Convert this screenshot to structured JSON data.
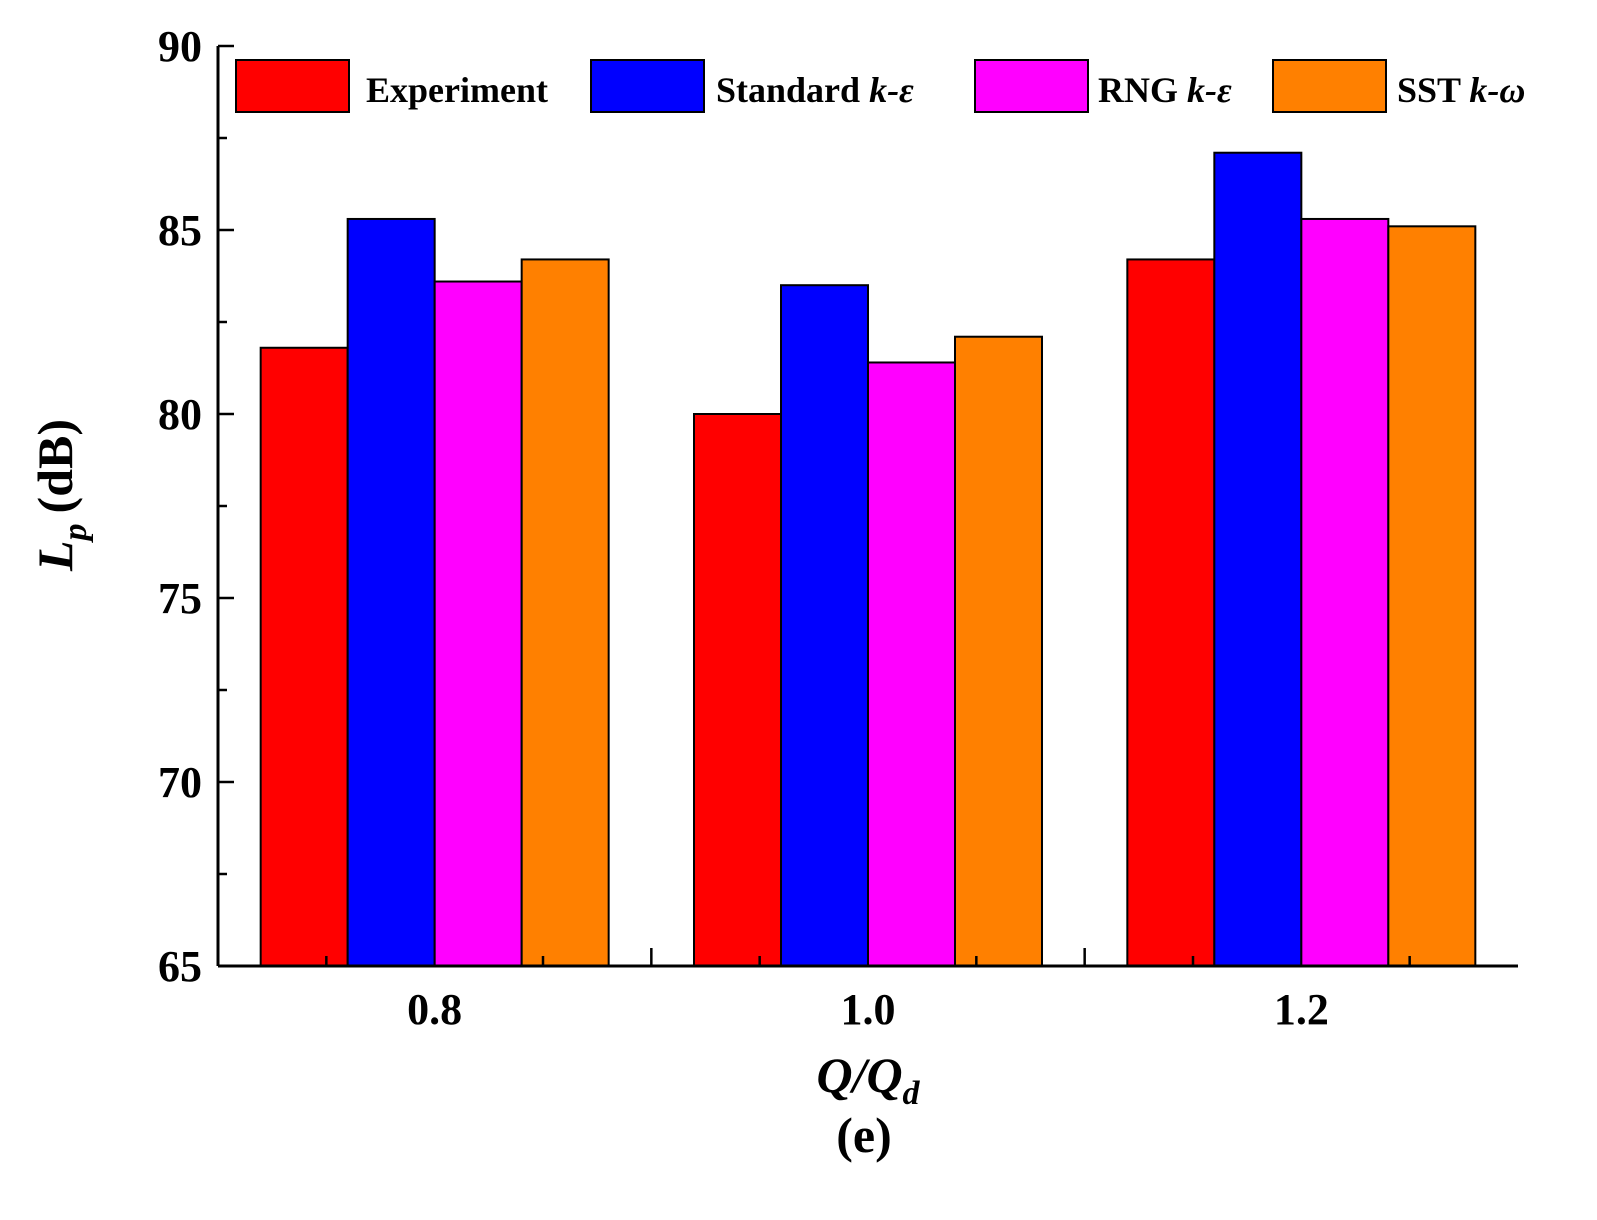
{
  "chart_data": {
    "type": "bar",
    "panel_label": "(e)",
    "xlabel": {
      "main": "Q/Q",
      "sub": "d"
    },
    "ylabel": {
      "main": "L",
      "sub": "p",
      "unit": "(dB)"
    },
    "categories": [
      "0.8",
      "1.0",
      "1.2"
    ],
    "ylim": [
      65,
      90
    ],
    "yticks": [
      65,
      70,
      75,
      80,
      85,
      90
    ],
    "series": [
      {
        "name": "Experiment",
        "label_plain": "Experiment",
        "label_italic": "",
        "color": "#FF0000",
        "values": [
          81.8,
          80.0,
          84.2
        ]
      },
      {
        "name": "Standard k-ε",
        "label_plain": "Standard ",
        "label_italic": "k-ε",
        "color": "#0000FF",
        "values": [
          85.3,
          83.5,
          87.1
        ]
      },
      {
        "name": "RNG k-ε",
        "label_plain": "RNG ",
        "label_italic": "k-ε",
        "color": "#FF00FF",
        "values": [
          83.6,
          81.4,
          85.3
        ]
      },
      {
        "name": "SST k-ω",
        "label_plain": "SST ",
        "label_italic": "k-ω",
        "color": "#FF8000",
        "values": [
          84.2,
          82.1,
          85.1
        ]
      }
    ],
    "legend_position": "top",
    "grid": false
  }
}
